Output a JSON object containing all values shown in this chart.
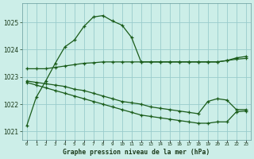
{
  "title": "Graphe pression niveau de la mer (hPa)",
  "background_color": "#cceee8",
  "grid_color": "#99cccc",
  "line_color": "#1a5c1a",
  "x_labels": [
    "0",
    "1",
    "2",
    "3",
    "4",
    "5",
    "6",
    "7",
    "8",
    "9",
    "10",
    "11",
    "12",
    "13",
    "14",
    "15",
    "16",
    "17",
    "18",
    "19",
    "20",
    "21",
    "22",
    "23"
  ],
  "yticks": [
    1021,
    1022,
    1023,
    1024,
    1025
  ],
  "ylim": [
    1020.7,
    1025.7
  ],
  "s1": [
    1021.2,
    1022.25,
    1022.85,
    1023.5,
    1024.1,
    1024.35,
    1024.85,
    1025.2,
    1025.25,
    1025.05,
    1024.9,
    1024.45,
    1023.55,
    1023.55,
    1023.55,
    1023.55,
    1023.55,
    1023.55,
    1023.55,
    1023.55,
    1023.55,
    1023.6,
    1023.7,
    1023.75
  ],
  "s2": [
    1023.3,
    1023.3,
    1023.3,
    1023.35,
    1023.4,
    1023.45,
    1023.5,
    1023.52,
    1023.55,
    1023.55,
    1023.55,
    1023.55,
    1023.55,
    1023.55,
    1023.55,
    1023.55,
    1023.55,
    1023.55,
    1023.55,
    1023.55,
    1023.55,
    1023.6,
    1023.65,
    1023.68
  ],
  "s3": [
    1022.85,
    1022.8,
    1022.75,
    1022.7,
    1022.65,
    1022.55,
    1022.5,
    1022.4,
    1022.3,
    1022.2,
    1022.1,
    1022.05,
    1022.0,
    1021.9,
    1021.85,
    1021.8,
    1021.75,
    1021.7,
    1021.65,
    1022.1,
    1022.2,
    1022.15,
    1021.8,
    1021.8
  ],
  "s4": [
    1022.8,
    1022.7,
    1022.6,
    1022.5,
    1022.4,
    1022.3,
    1022.2,
    1022.1,
    1022.0,
    1021.9,
    1021.8,
    1021.7,
    1021.6,
    1021.55,
    1021.5,
    1021.45,
    1021.4,
    1021.35,
    1021.3,
    1021.3,
    1021.35,
    1021.35,
    1021.72,
    1021.75
  ]
}
